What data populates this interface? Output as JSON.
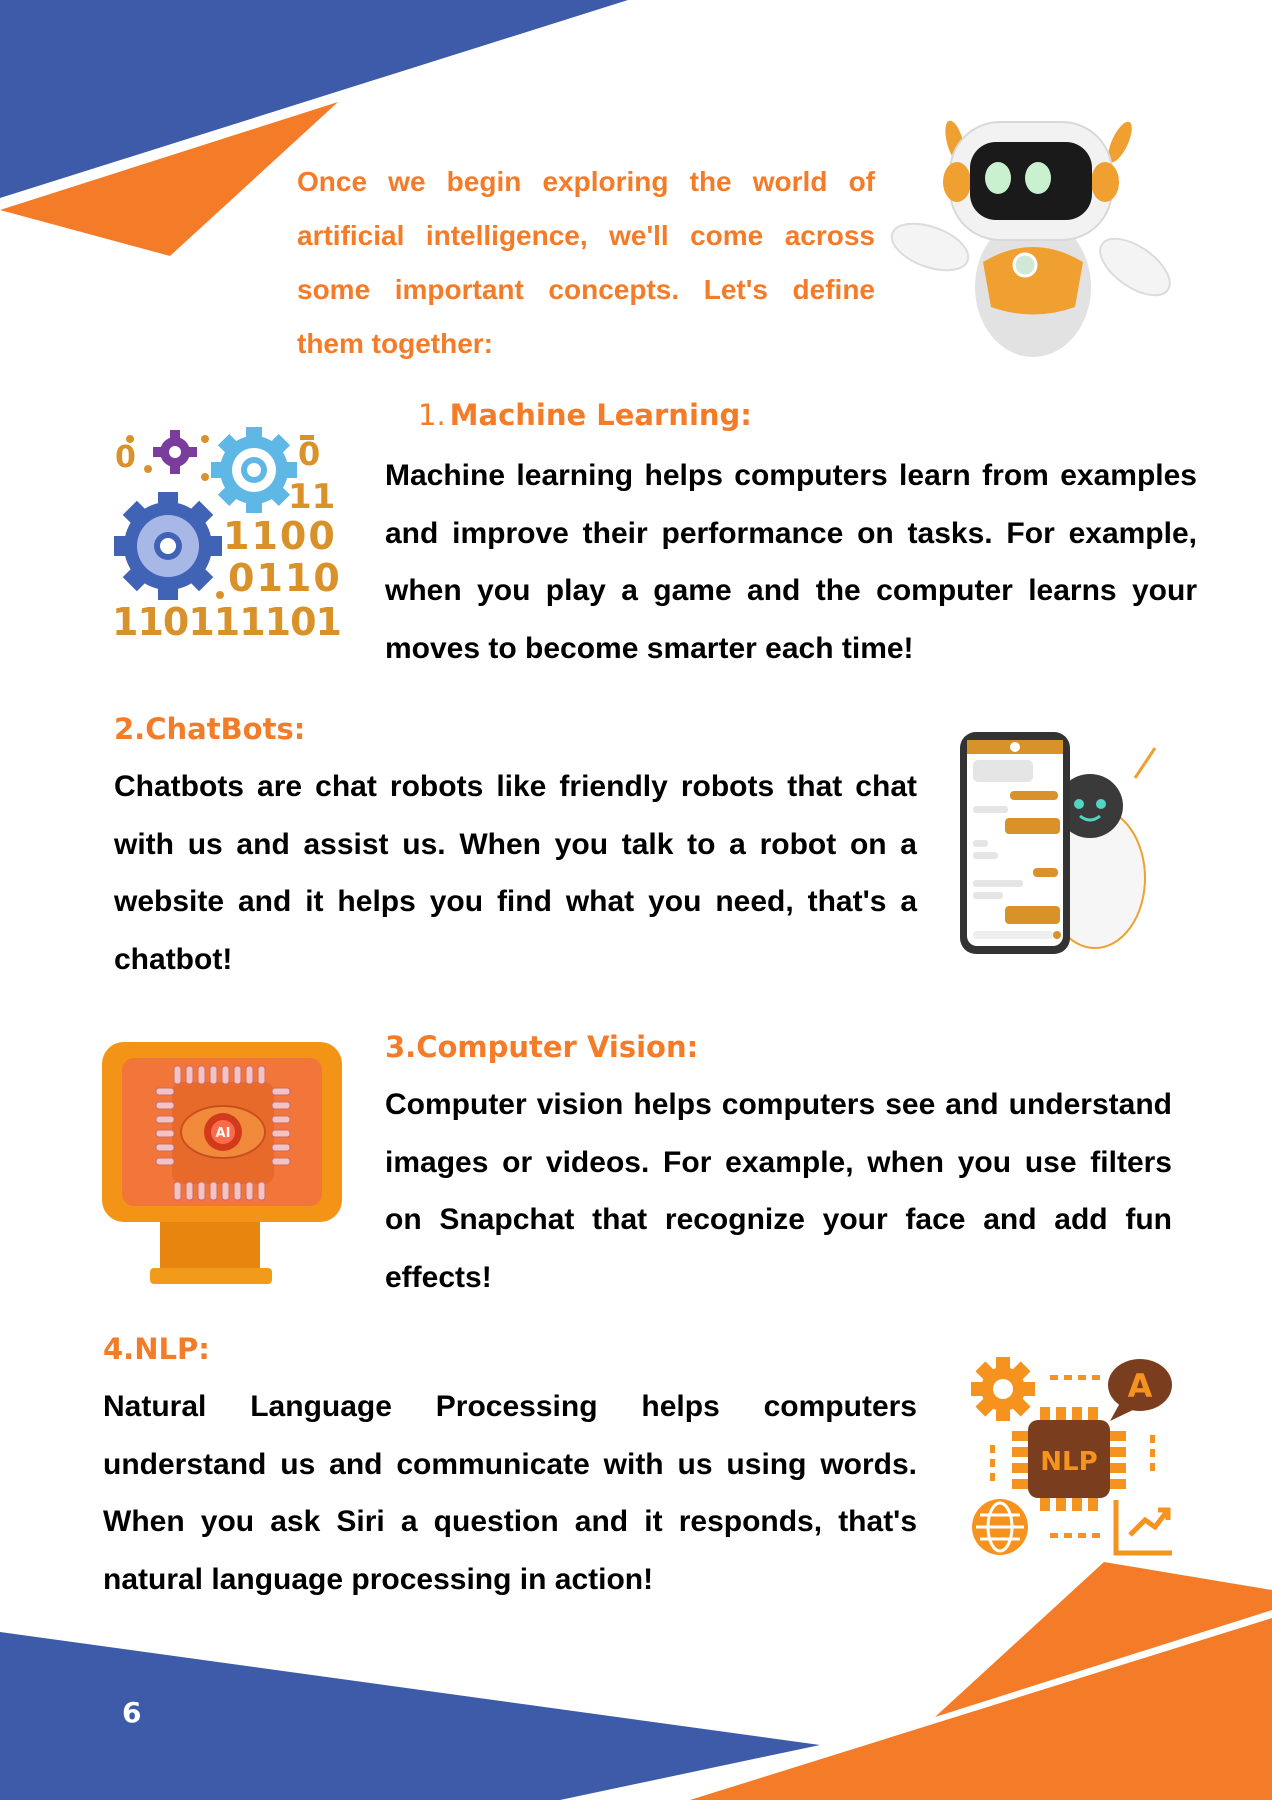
{
  "intro": "Once we begin exploring the world of artificial intelligence, we'll come across some important concepts. Let's define them together:",
  "sections": [
    {
      "number": "1.",
      "title": "Machine Learning:",
      "body": "Machine learning helps computers learn from examples and improve their performance on tasks. For example, when you play a game and the computer learns your moves to become smarter each time!",
      "illustration": "gears-binary-icon",
      "binary_lines": [
        "11",
        "1100",
        "0110",
        "1101111011"
      ]
    },
    {
      "title": "2.ChatBots:",
      "body": "Chatbots are chat robots like friendly robots that chat with us and assist us. When you talk to a robot on a website and it helps you find what you need, that's a chatbot!",
      "illustration": "phone-robot-chat-icon"
    },
    {
      "title": "3.Computer Vision:",
      "body": "Computer vision helps computers see and understand images or videos. For example, when you use filters on Snapchat that recognize your face and add fun effects!",
      "illustration": "monitor-ai-eye-icon",
      "chip_label": "AI"
    },
    {
      "title": "4.NLP:",
      "body": "Natural Language Processing helps computers understand us and communicate with us using words. When you ask Siri a question and it responds, that's natural language processing in action!",
      "illustration": "nlp-chip-icon",
      "chip_label": "NLP",
      "bubble_label": "A"
    }
  ],
  "page_number": "6",
  "colors": {
    "blue": "#3e5ba9",
    "orange": "#f47b27",
    "text": "#000000"
  }
}
